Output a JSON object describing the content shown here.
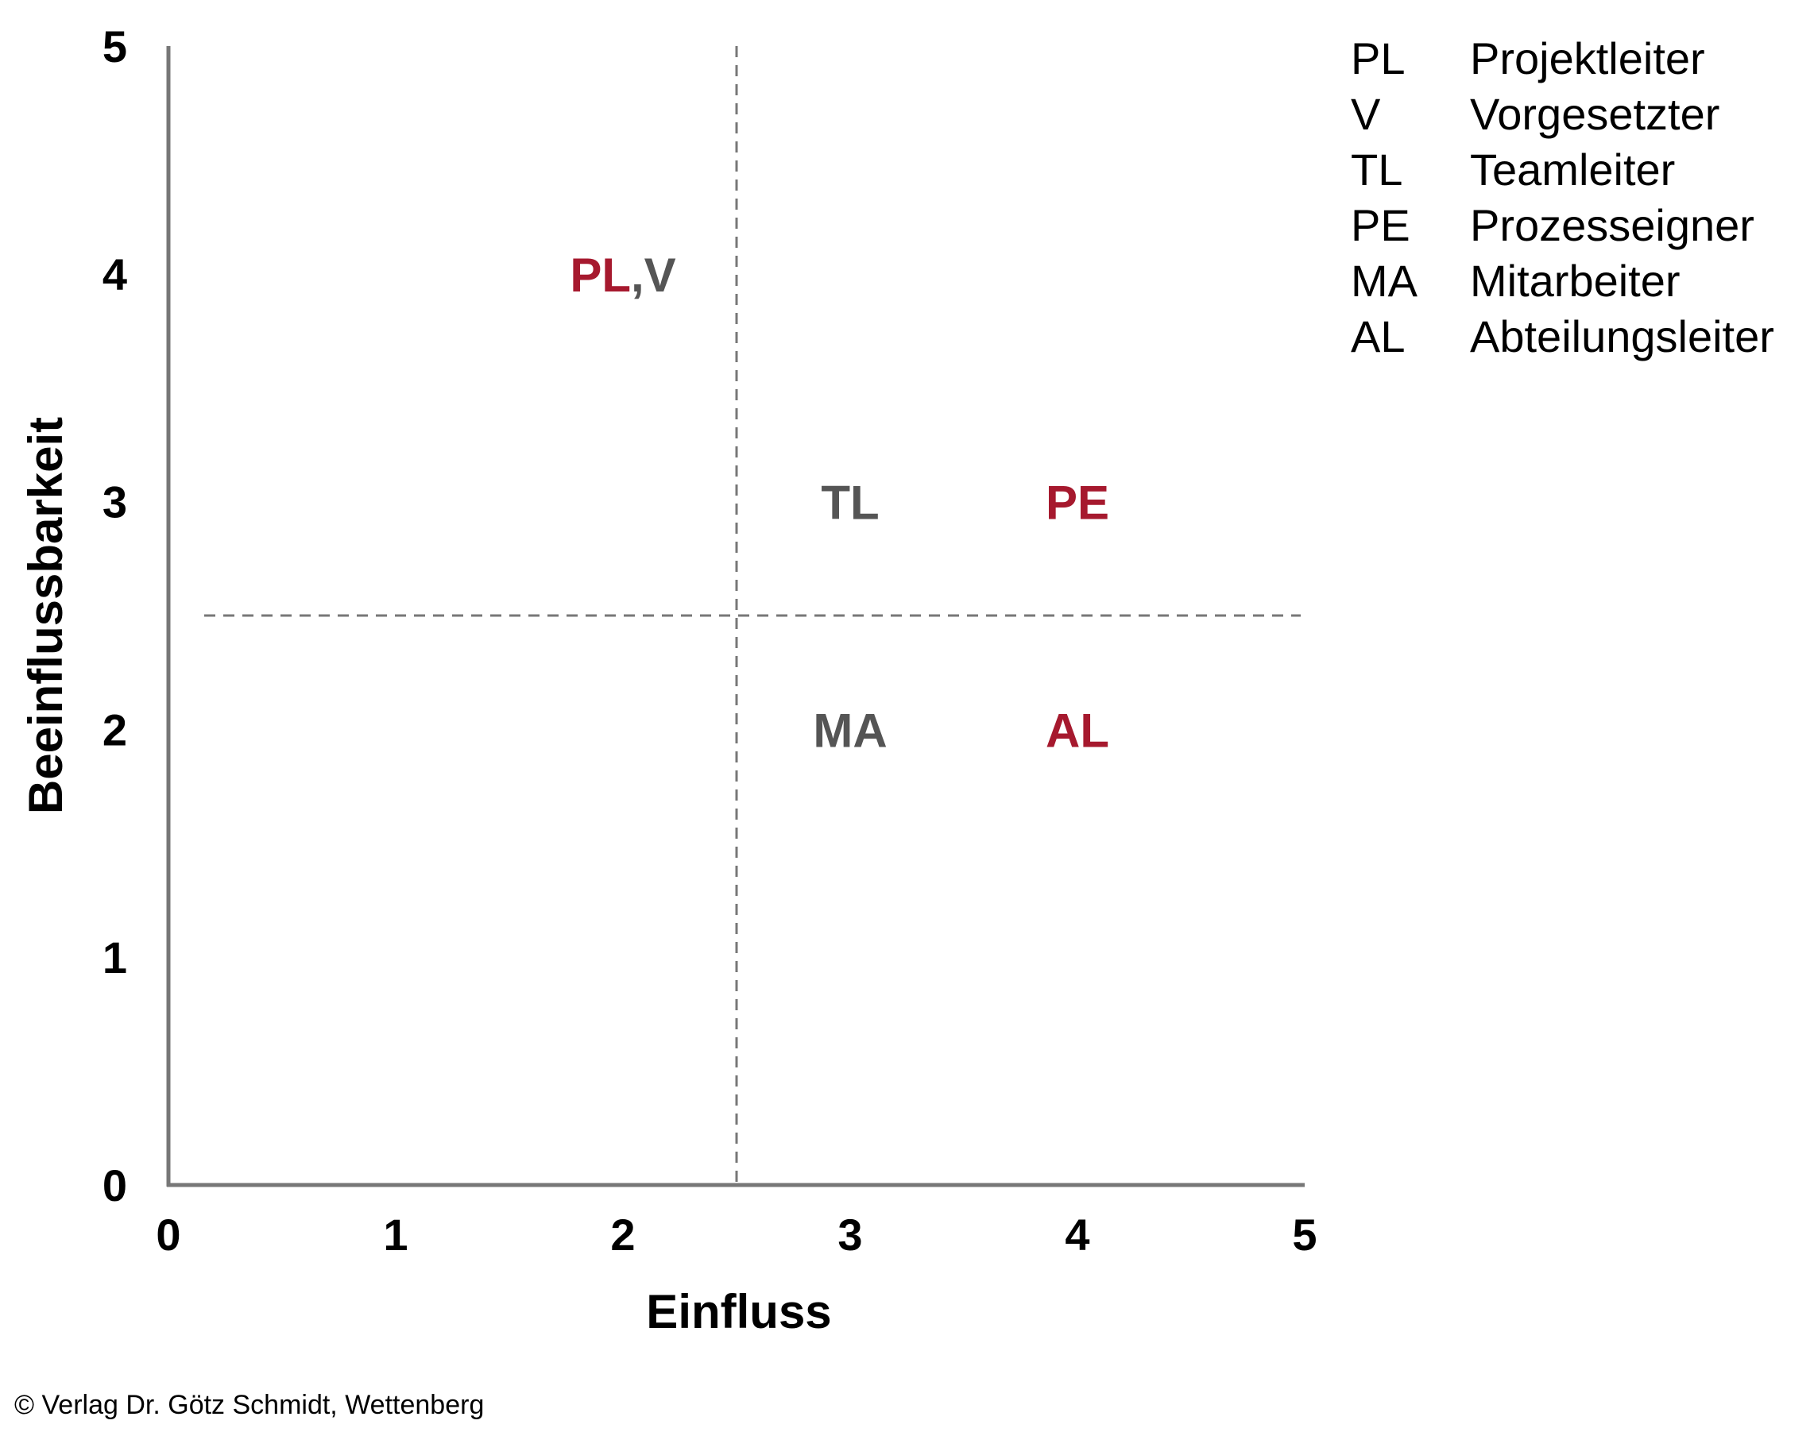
{
  "chart_data": {
    "type": "scatter",
    "title": "",
    "xlabel": "Einfluss",
    "ylabel": "Beeinflussbarkeit",
    "xlim": [
      0,
      5
    ],
    "ylim": [
      0,
      5
    ],
    "x_ticks": [
      "0",
      "1",
      "2",
      "3",
      "4",
      "5"
    ],
    "y_ticks": [
      "0",
      "1",
      "2",
      "3",
      "4",
      "5"
    ],
    "grid": false,
    "reference_lines": {
      "x": 2.5,
      "y": 2.5,
      "style": "dashed"
    },
    "colors": {
      "highlight": "#a6192e",
      "neutral": "#555555",
      "axis": "#777777"
    },
    "points": [
      {
        "x": 2,
        "y": 4,
        "label": "PL,V",
        "parts": [
          {
            "text": "PL",
            "color": "#a6192e"
          },
          {
            "text": ",V",
            "color": "#555555"
          }
        ]
      },
      {
        "x": 3,
        "y": 3,
        "label": "TL",
        "parts": [
          {
            "text": "TL",
            "color": "#555555"
          }
        ]
      },
      {
        "x": 4,
        "y": 3,
        "label": "PE",
        "parts": [
          {
            "text": "PE",
            "color": "#a6192e"
          }
        ]
      },
      {
        "x": 3,
        "y": 2,
        "label": "MA",
        "parts": [
          {
            "text": "MA",
            "color": "#555555"
          }
        ]
      },
      {
        "x": 4,
        "y": 2,
        "label": "AL",
        "parts": [
          {
            "text": "AL",
            "color": "#a6192e"
          }
        ]
      }
    ],
    "legend": [
      {
        "abbr": "PL",
        "text": "Projektleiter"
      },
      {
        "abbr": "V",
        "text": "Vorgesetzter"
      },
      {
        "abbr": "TL",
        "text": "Teamleiter"
      },
      {
        "abbr": "PE",
        "text": "Prozesseigner"
      },
      {
        "abbr": "MA",
        "text": "Mitarbeiter"
      },
      {
        "abbr": "AL",
        "text": "Abteilungsleiter"
      }
    ],
    "legend_position": "top-right"
  },
  "footer": {
    "copyright": "© Verlag Dr. Götz Schmidt, Wettenberg"
  }
}
